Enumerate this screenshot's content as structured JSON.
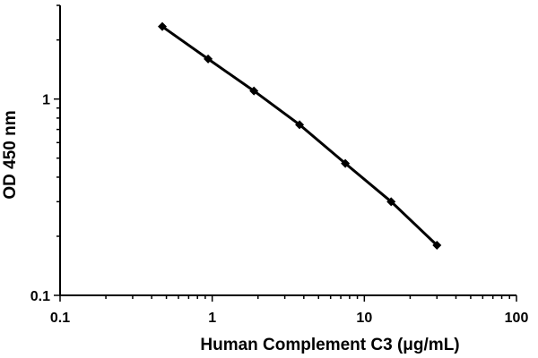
{
  "chart_data": {
    "type": "line",
    "xlabel": "Human Complement C3 (μg/mL)",
    "ylabel": "OD 450 nm",
    "x_scale": "log",
    "y_scale": "log",
    "xlim": [
      0.1,
      100
    ],
    "ylim": [
      0.1,
      3
    ],
    "x_ticks": [
      {
        "value": 0.1,
        "label": "0.1"
      },
      {
        "value": 1,
        "label": "1"
      },
      {
        "value": 10,
        "label": "10"
      },
      {
        "value": 100,
        "label": "100"
      }
    ],
    "y_ticks": [
      {
        "value": 0.1,
        "label": "0.1"
      },
      {
        "value": 1,
        "label": "1"
      }
    ],
    "grid": false,
    "colors": {
      "series": "#000000",
      "axis": "#000000"
    },
    "series": [
      {
        "marker": "diamond",
        "points": [
          {
            "x": 0.47,
            "y": 2.34
          },
          {
            "x": 0.94,
            "y": 1.6
          },
          {
            "x": 1.88,
            "y": 1.1
          },
          {
            "x": 3.75,
            "y": 0.74
          },
          {
            "x": 7.5,
            "y": 0.47
          },
          {
            "x": 15,
            "y": 0.3
          },
          {
            "x": 30,
            "y": 0.18
          }
        ]
      }
    ]
  }
}
